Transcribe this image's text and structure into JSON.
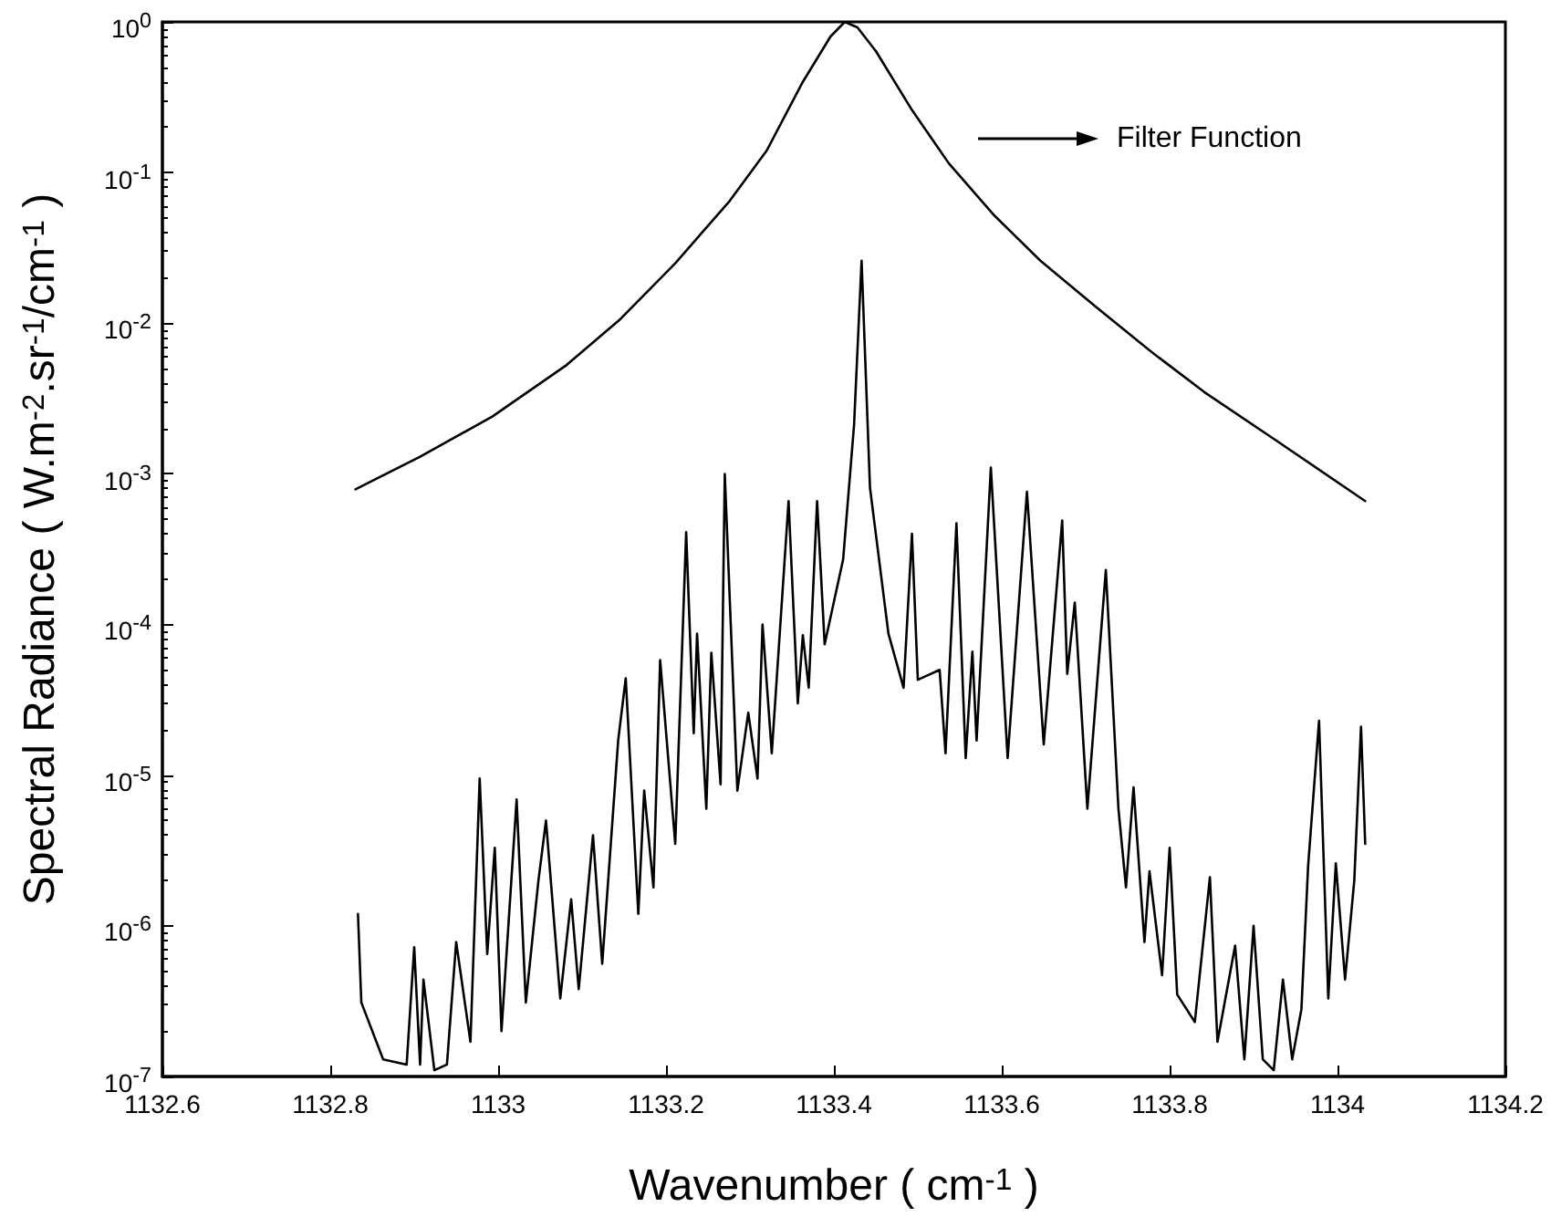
{
  "chart_data": {
    "type": "line",
    "xlabel": "Wavenumber ( cm$^{-1}$ )",
    "ylabel": "Spectral Radiance ( W.m$^{-2}$.sr$^{-1}$/cm$^{-1}$ )",
    "xlim": [
      1132.6,
      1134.2
    ],
    "xticks": [
      {
        "value": 1132.6,
        "label": "1132.6"
      },
      {
        "value": 1132.8,
        "label": "1132.8"
      },
      {
        "value": 1133,
        "label": "1133"
      },
      {
        "value": 1133.2,
        "label": "1133.2"
      },
      {
        "value": 1133.4,
        "label": "1133.4"
      },
      {
        "value": 1133.6,
        "label": "1133.6"
      },
      {
        "value": 1133.8,
        "label": "1133.8"
      },
      {
        "value": 1134,
        "label": "1134"
      },
      {
        "value": 1134.2,
        "label": "1134.2"
      }
    ],
    "ylim": [
      1e-07,
      1
    ],
    "yticks": [
      {
        "value": 1e-07,
        "label": "10$^{-7}$"
      },
      {
        "value": 1e-06,
        "label": "10$^{-6}$"
      },
      {
        "value": 1e-05,
        "label": "10$^{-5}$"
      },
      {
        "value": 0.0001,
        "label": "10$^{-4}$"
      },
      {
        "value": 0.001,
        "label": "10$^{-3}$"
      },
      {
        "value": 0.01,
        "label": "10$^{-2}$"
      },
      {
        "value": 0.1,
        "label": "10$^{-1}$"
      },
      {
        "value": 1,
        "label": "10$^{0}$"
      }
    ],
    "log": "y",
    "marker": "none",
    "line_style": "solid",
    "annotations": [
      "Filter Function"
    ],
    "series": [
      {
        "color": "#000000",
        "x": [
          1132.83,
          1132.907,
          1132.993,
          1133.08,
          1133.146,
          1133.211,
          1133.276,
          1133.32,
          1133.363,
          1133.396,
          1133.413,
          1133.428,
          1133.45,
          1133.493,
          1133.537,
          1133.591,
          1133.646,
          1133.711,
          1133.776,
          1133.841,
          1133.928,
          1134.033
        ],
        "values": [
          0.00079,
          0.0013,
          0.0024,
          0.0052,
          0.0107,
          0.025,
          0.065,
          0.14,
          0.4,
          0.8,
          1.0,
          0.92,
          0.64,
          0.26,
          0.115,
          0.052,
          0.026,
          0.013,
          0.0066,
          0.0035,
          0.00165,
          0.00066
        ]
      },
      {
        "color": "#000000",
        "x": [
          1132.833,
          1132.837,
          1132.863,
          1132.891,
          1132.9,
          1132.907,
          1132.911,
          1132.924,
          1132.939,
          1132.95,
          1132.967,
          1132.978,
          1132.987,
          1132.996,
          1133.004,
          1133.022,
          1133.033,
          1133.048,
          1133.057,
          1133.074,
          1133.087,
          1133.096,
          1133.113,
          1133.124,
          1133.143,
          1133.152,
          1133.167,
          1133.174,
          1133.185,
          1133.193,
          1133.211,
          1133.224,
          1133.233,
          1133.237,
          1133.248,
          1133.254,
          1133.265,
          1133.27,
          1133.285,
          1133.298,
          1133.309,
          1133.315,
          1133.326,
          1133.346,
          1133.357,
          1133.363,
          1133.37,
          1133.38,
          1133.389,
          1133.411,
          1133.424,
          1133.433,
          1133.443,
          1133.465,
          1133.483,
          1133.493,
          1133.5,
          1133.526,
          1133.533,
          1133.546,
          1133.557,
          1133.565,
          1133.57,
          1133.587,
          1133.607,
          1133.63,
          1133.65,
          1133.672,
          1133.678,
          1133.687,
          1133.702,
          1133.724,
          1133.739,
          1133.748,
          1133.757,
          1133.77,
          1133.776,
          1133.791,
          1133.8,
          1133.809,
          1133.83,
          1133.848,
          1133.857,
          1133.878,
          1133.889,
          1133.9,
          1133.911,
          1133.924,
          1133.935,
          1133.946,
          1133.957,
          1133.965,
          1133.978,
          1133.989,
          1133.998,
          1134.009,
          1134.02,
          1134.028,
          1134.033
        ],
        "values": [
          1.2e-06,
          3.1e-07,
          1.3e-07,
          1.2e-07,
          7.2e-07,
          1.2e-07,
          4.4e-07,
          1.1e-07,
          1.2e-07,
          7.8e-07,
          1.7e-07,
          9.5e-06,
          6.5e-07,
          3.3e-06,
          2e-07,
          6.9e-06,
          3.1e-07,
          2e-06,
          5e-06,
          3.3e-07,
          1.5e-06,
          3.8e-07,
          4e-06,
          5.6e-07,
          1.7e-05,
          4.4e-05,
          1.2e-06,
          7.9e-06,
          1.8e-06,
          5.8e-05,
          3.5e-06,
          0.00041,
          1.9e-05,
          8.7e-05,
          6e-06,
          6.5e-05,
          8.7e-06,
          0.001,
          7.9e-06,
          2.6e-05,
          9.5e-06,
          0.0001,
          1.4e-05,
          0.00066,
          3e-05,
          8.5e-05,
          3.8e-05,
          0.00066,
          7.4e-05,
          0.00027,
          0.0021,
          0.026,
          0.00081,
          8.7e-05,
          3.8e-05,
          0.0004,
          4.3e-05,
          5e-05,
          1.4e-05,
          0.00047,
          1.3e-05,
          6.6e-05,
          1.7e-05,
          0.0011,
          1.3e-05,
          0.00076,
          1.6e-05,
          0.00049,
          4.7e-05,
          0.00014,
          6e-06,
          0.00023,
          6e-06,
          1.8e-06,
          8.3e-06,
          7.8e-07,
          2.3e-06,
          4.7e-07,
          3.3e-06,
          3.5e-07,
          2.3e-07,
          2.1e-06,
          1.7e-07,
          7.4e-07,
          1.3e-07,
          1e-06,
          1.3e-07,
          1.1e-07,
          4.4e-07,
          1.3e-07,
          2.8e-07,
          2.5e-06,
          2.3e-05,
          3.3e-07,
          2.6e-06,
          4.4e-07,
          2e-06,
          2.1e-05,
          3.5e-06
        ]
      }
    ]
  }
}
